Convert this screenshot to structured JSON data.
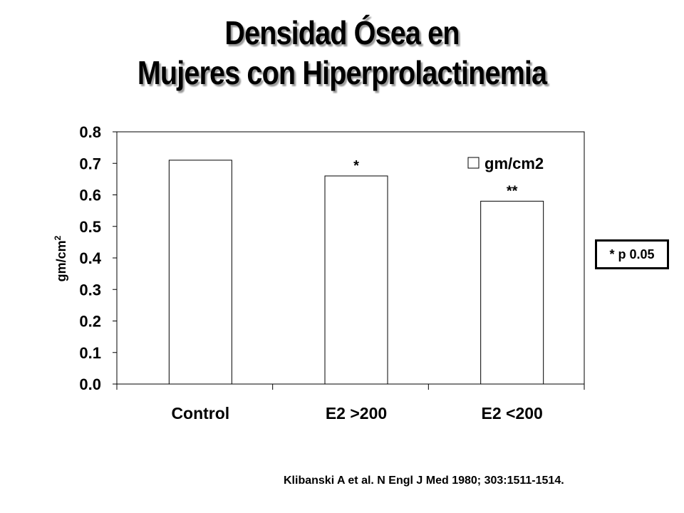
{
  "title": {
    "line1": "Densidad Ósea en",
    "line2": "Mujeres con Hiperprolactinemia"
  },
  "chart_data": {
    "type": "bar",
    "categories": [
      "Control",
      "E2 >200",
      "E2 <200"
    ],
    "series": [
      {
        "name": "gm/cm2",
        "values": [
          0.71,
          0.66,
          0.58
        ],
        "color": "#ffffff"
      }
    ],
    "annotations": [
      "",
      "*",
      "**"
    ],
    "ylabel": "gm/cm2",
    "ylim": [
      0,
      0.8
    ],
    "yticks": [
      "0.0",
      "0.1",
      "0.2",
      "0.3",
      "0.4",
      "0.5",
      "0.6",
      "0.7",
      "0.8"
    ],
    "grid": false,
    "legend": "top-right",
    "bar_fill": "#ffffff",
    "bar_stroke": "#000000"
  },
  "significance_note": "* p  0.05",
  "citation": "Klibanski A et al. N Engl J Med 1980; 303:1511-1514."
}
